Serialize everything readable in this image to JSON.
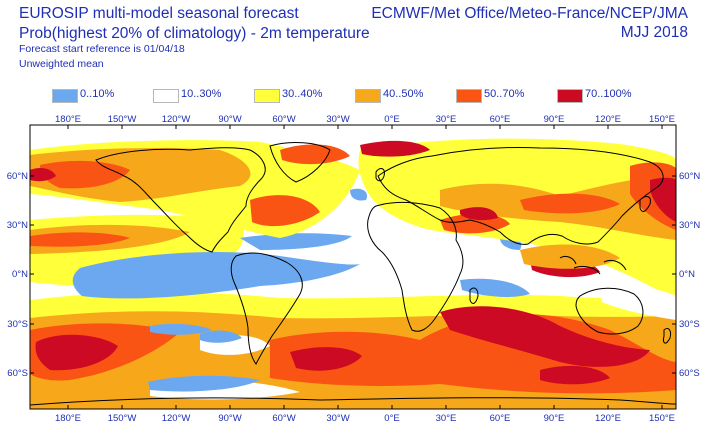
{
  "header": {
    "title_line1": "EUROSIP multi-model seasonal forecast",
    "title_line2": "Prob(highest 20% of climatology) - 2m temperature",
    "forecast_reference": "Forecast start reference is 01/04/18",
    "weighting": "Unweighted mean",
    "centres": "ECMWF/Met Office/Meteo-France/NCEP/JMA",
    "period": "MJJ 2018"
  },
  "legend": [
    {
      "label": "0..10%",
      "color": "#6ca8f0"
    },
    {
      "label": "10..30%",
      "color": "#ffffff"
    },
    {
      "label": "30..40%",
      "color": "#ffff3a"
    },
    {
      "label": "40..50%",
      "color": "#f7a81a"
    },
    {
      "label": "50..70%",
      "color": "#fa5414"
    },
    {
      "label": "70..100%",
      "color": "#cc0a24"
    }
  ],
  "map": {
    "lon_labels": [
      "180°E",
      "150°W",
      "120°W",
      "90°W",
      "60°W",
      "30°W",
      "0°E",
      "30°E",
      "60°E",
      "90°E",
      "120°E",
      "150°E"
    ],
    "lat_labels": [
      "60°N",
      "30°N",
      "0°N",
      "30°S",
      "60°S"
    ],
    "frame_color": "#000000"
  }
}
